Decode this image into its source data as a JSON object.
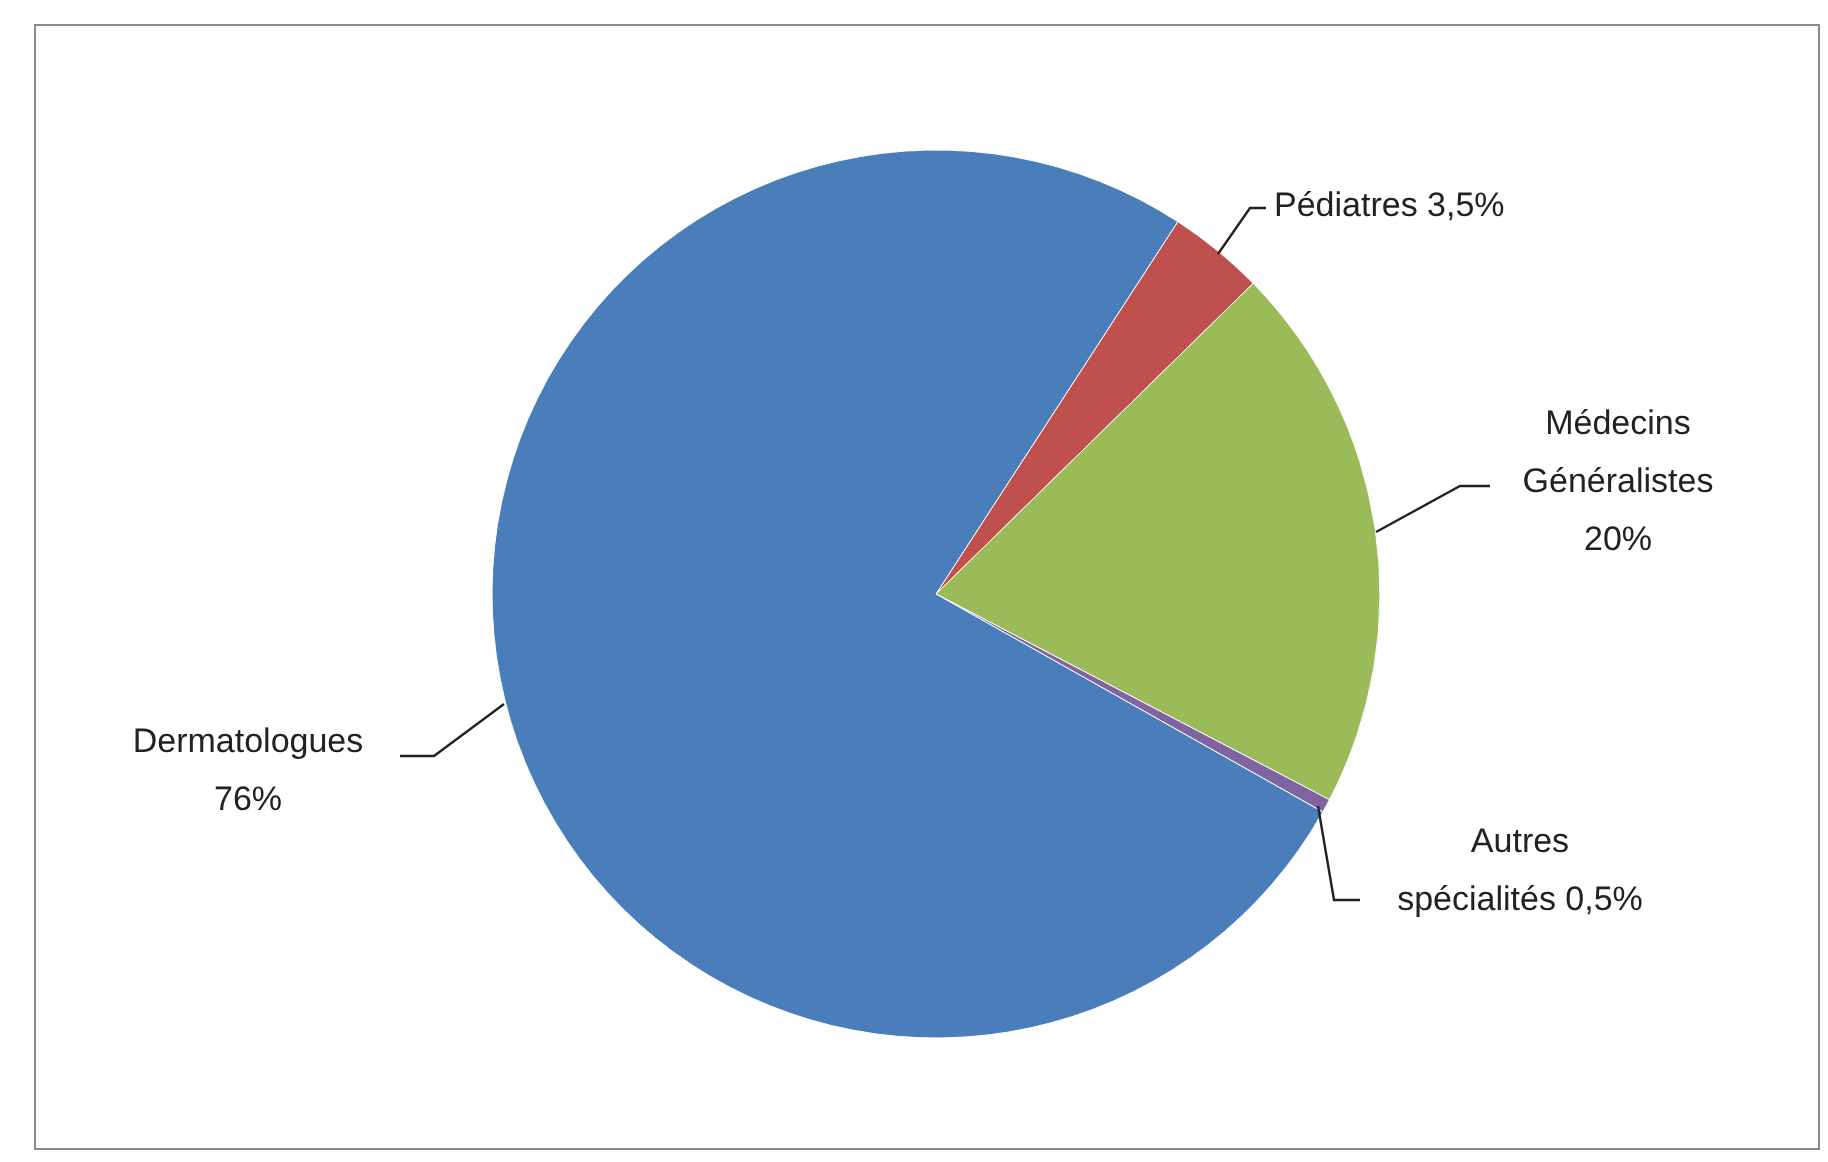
{
  "chart_data": {
    "type": "pie",
    "categories": [
      "Pédiatres",
      "Médecins Généralistes",
      "Autres spécialités",
      "Dermatologues"
    ],
    "values": [
      3.5,
      20,
      0.5,
      76
    ],
    "colors": [
      "#c0504d",
      "#9bbb59",
      "#8064a2",
      "#4a7ebb"
    ],
    "value_labels": [
      "3,5%",
      "20%",
      "0,5%",
      "76%"
    ],
    "legend": false
  }
}
